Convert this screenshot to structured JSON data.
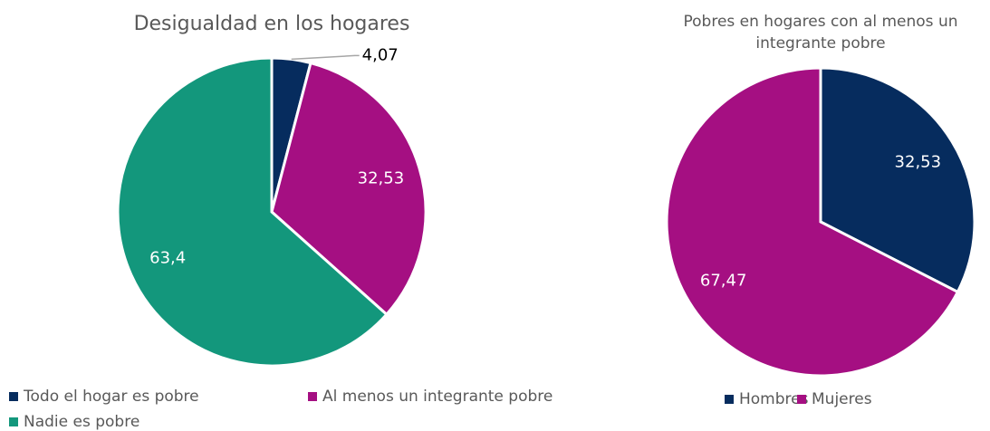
{
  "chart_data": [
    {
      "type": "pie",
      "title": "Desigualdad en los hogares",
      "categories": [
        "Todo el hogar es pobre",
        "Al menos un integrante pobre",
        "Nadie es pobre"
      ],
      "values": [
        4.07,
        32.53,
        63.4
      ],
      "value_labels": [
        "4,07",
        "32,53",
        "63,4"
      ],
      "colors": [
        "#062c5e",
        "#a50f82",
        "#13977c"
      ]
    },
    {
      "type": "pie",
      "title": "Pobres en hogares con al menos un integrante pobre",
      "categories": [
        "Hombres",
        "Mujeres"
      ],
      "values": [
        32.53,
        67.47
      ],
      "value_labels": [
        "32,53",
        "67,47"
      ],
      "colors": [
        "#062c5e",
        "#a50f82"
      ]
    }
  ]
}
